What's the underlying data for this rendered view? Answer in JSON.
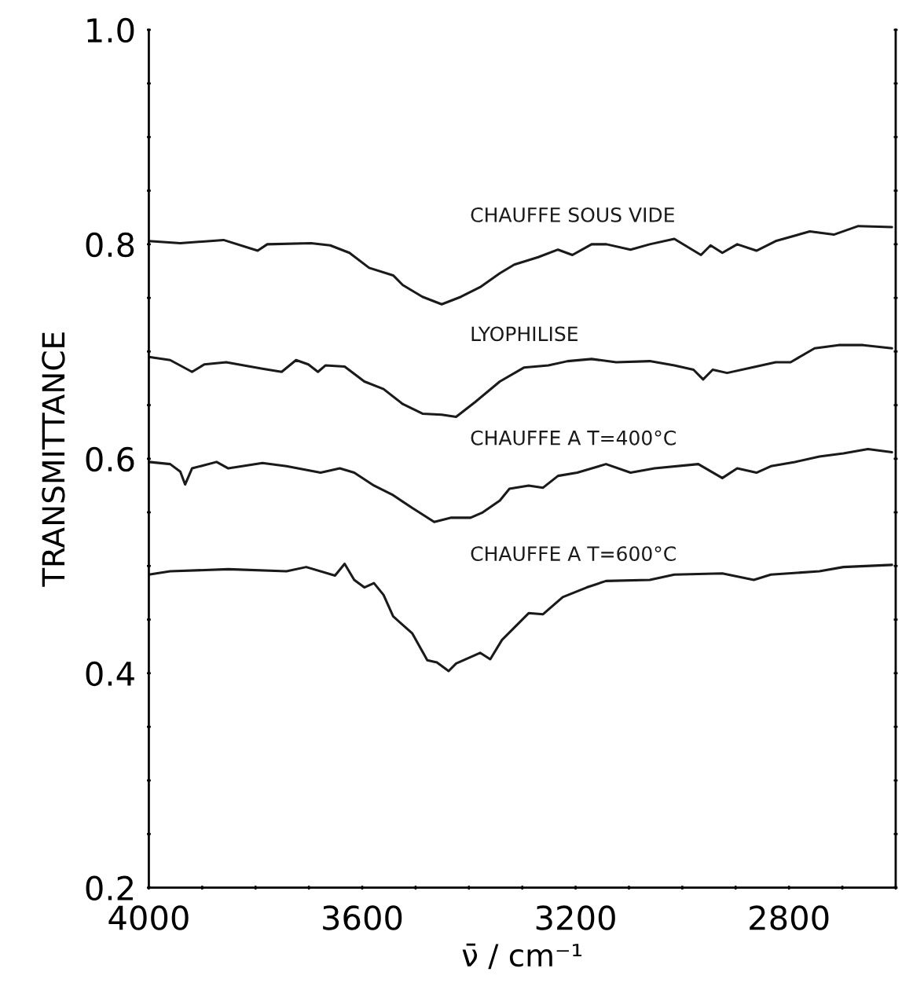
{
  "chart_data": {
    "type": "line",
    "xlabel": "ν̄ / cm⁻¹",
    "ylabel": "TRANSMITTANCE",
    "xlim": [
      4000,
      2600
    ],
    "ylim": [
      0.2,
      1.0
    ],
    "xticks": [
      4000,
      {
        "value": 3900,
        "label": null
      },
      {
        "value": 3800,
        "label": null
      },
      {
        "value": 3700,
        "label": null
      },
      3600,
      {
        "value": 3500,
        "label": null
      },
      {
        "value": 3400,
        "label": null
      },
      {
        "value": 3300,
        "label": null
      },
      3200,
      {
        "value": 3100,
        "label": null
      },
      {
        "value": 3000,
        "label": null
      },
      {
        "value": 2900,
        "label": null
      },
      2800,
      {
        "value": 2700,
        "label": null
      },
      {
        "value": 2600,
        "label": null
      }
    ],
    "yticks": [
      {
        "value": 0.2,
        "label": "0.2"
      },
      {
        "value": 0.25,
        "label": null
      },
      {
        "value": 0.3,
        "label": null
      },
      {
        "value": 0.35,
        "label": null
      },
      {
        "value": 0.4,
        "label": "0.4"
      },
      {
        "value": 0.45,
        "label": null
      },
      {
        "value": 0.5,
        "label": null
      },
      {
        "value": 0.55,
        "label": null
      },
      {
        "value": 0.6,
        "label": "0.6"
      },
      {
        "value": 0.65,
        "label": null
      },
      {
        "value": 0.7,
        "label": null
      },
      {
        "value": 0.75,
        "label": null
      },
      {
        "value": 0.8,
        "label": "0.8"
      },
      {
        "value": 0.85,
        "label": null
      },
      {
        "value": 0.9,
        "label": null
      },
      {
        "value": 0.95,
        "label": null
      },
      {
        "value": 1.0,
        "label": "1.0"
      }
    ],
    "grid": false,
    "legend": false,
    "marker": "none",
    "line_style": "solid",
    "series": [
      {
        "name": "CHAUFFE SOUS VIDE",
        "color": "#1a1a1a",
        "x": [
          4000,
          3941,
          3860,
          3796,
          3778,
          3696,
          3660,
          3624,
          3587,
          3542,
          3524,
          3487,
          3451,
          3415,
          3379,
          3342,
          3315,
          3270,
          3233,
          3206,
          3170,
          3142,
          3097,
          3061,
          3015,
          2965,
          2947,
          2925,
          2897,
          2861,
          2825,
          2761,
          2716,
          2670,
          2607
        ],
        "values": [
          0.803,
          0.801,
          0.804,
          0.794,
          0.8,
          0.801,
          0.799,
          0.792,
          0.778,
          0.771,
          0.762,
          0.751,
          0.744,
          0.751,
          0.76,
          0.773,
          0.781,
          0.788,
          0.795,
          0.79,
          0.8,
          0.8,
          0.795,
          0.8,
          0.805,
          0.79,
          0.799,
          0.792,
          0.8,
          0.794,
          0.803,
          0.812,
          0.809,
          0.817,
          0.816
        ]
      },
      {
        "name": "LYOPHILISE",
        "color": "#1a1a1a",
        "x": [
          4000,
          3960,
          3919,
          3896,
          3855,
          3787,
          3751,
          3724,
          3701,
          3683,
          3669,
          3633,
          3596,
          3560,
          3524,
          3487,
          3451,
          3424,
          3388,
          3342,
          3297,
          3251,
          3215,
          3170,
          3124,
          3061,
          3015,
          2979,
          2961,
          2943,
          2916,
          2870,
          2825,
          2797,
          2752,
          2707,
          2661,
          2607
        ],
        "values": [
          0.695,
          0.692,
          0.681,
          0.688,
          0.69,
          0.684,
          0.681,
          0.692,
          0.688,
          0.681,
          0.687,
          0.686,
          0.672,
          0.665,
          0.651,
          0.642,
          0.641,
          0.639,
          0.653,
          0.672,
          0.685,
          0.687,
          0.691,
          0.693,
          0.69,
          0.691,
          0.687,
          0.683,
          0.674,
          0.683,
          0.68,
          0.685,
          0.69,
          0.69,
          0.703,
          0.706,
          0.706,
          0.703
        ]
      },
      {
        "name": "CHAUFFE A T=400°C",
        "color": "#1a1a1a",
        "x": [
          4000,
          3960,
          3941,
          3932,
          3919,
          3873,
          3851,
          3787,
          3742,
          3678,
          3642,
          3615,
          3578,
          3542,
          3506,
          3465,
          3433,
          3397,
          3374,
          3342,
          3324,
          3288,
          3261,
          3233,
          3197,
          3143,
          3097,
          3052,
          2970,
          2925,
          2897,
          2861,
          2834,
          2789,
          2743,
          2698,
          2652,
          2607
        ],
        "values": [
          0.597,
          0.595,
          0.588,
          0.576,
          0.591,
          0.597,
          0.591,
          0.596,
          0.593,
          0.587,
          0.591,
          0.587,
          0.575,
          0.566,
          0.554,
          0.541,
          0.545,
          0.545,
          0.55,
          0.561,
          0.572,
          0.575,
          0.573,
          0.584,
          0.587,
          0.595,
          0.587,
          0.591,
          0.595,
          0.582,
          0.591,
          0.587,
          0.593,
          0.597,
          0.602,
          0.605,
          0.609,
          0.606
        ]
      },
      {
        "name": "CHAUFFE A T=600°C",
        "color": "#1a1a1a",
        "x": [
          4000,
          3960,
          3851,
          3742,
          3705,
          3651,
          3633,
          3615,
          3596,
          3578,
          3560,
          3542,
          3506,
          3478,
          3460,
          3438,
          3424,
          3379,
          3360,
          3338,
          3288,
          3261,
          3224,
          3179,
          3143,
          3061,
          3015,
          2925,
          2866,
          2834,
          2743,
          2698,
          2607
        ],
        "values": [
          0.492,
          0.495,
          0.497,
          0.495,
          0.499,
          0.491,
          0.502,
          0.487,
          0.48,
          0.484,
          0.473,
          0.453,
          0.437,
          0.412,
          0.41,
          0.402,
          0.409,
          0.419,
          0.413,
          0.431,
          0.456,
          0.455,
          0.471,
          0.48,
          0.486,
          0.487,
          0.492,
          0.493,
          0.487,
          0.492,
          0.495,
          0.499,
          0.501
        ]
      }
    ]
  }
}
